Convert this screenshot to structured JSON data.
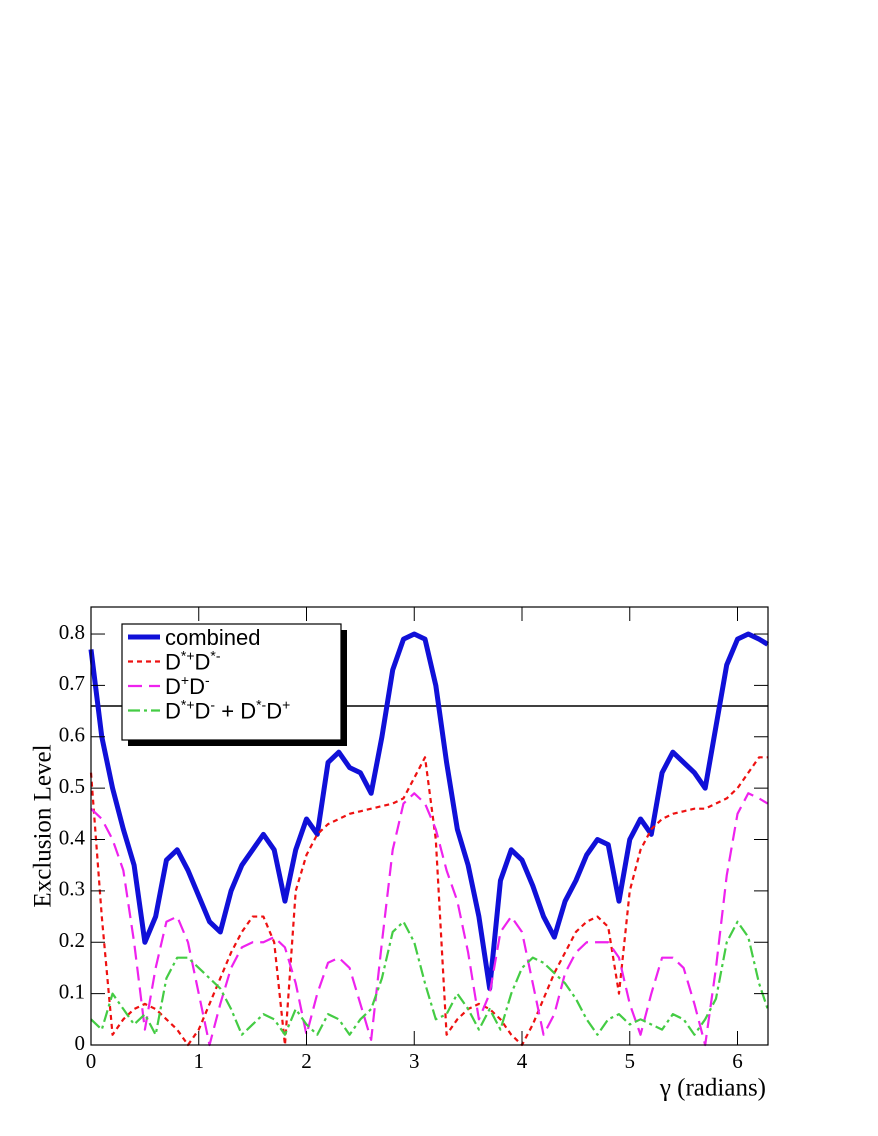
{
  "chart_data": {
    "type": "line",
    "ylabel": "Exclusion Level",
    "xlabel": "γ  (radians)",
    "x": [
      0,
      0.1,
      0.2,
      0.3,
      0.4,
      0.5,
      0.6,
      0.7,
      0.8,
      0.9,
      1.0,
      1.1,
      1.2,
      1.3,
      1.4,
      1.5,
      1.6,
      1.7,
      1.8,
      1.9,
      2.0,
      2.1,
      2.2,
      2.3,
      2.4,
      2.5,
      2.6,
      2.7,
      2.8,
      2.9,
      3.0,
      3.1,
      3.2,
      3.3,
      3.4,
      3.5,
      3.6,
      3.7,
      3.8,
      3.9,
      4.0,
      4.1,
      4.2,
      4.3,
      4.4,
      4.5,
      4.6,
      4.7,
      4.8,
      4.9,
      5.0,
      5.1,
      5.2,
      5.3,
      5.4,
      5.5,
      5.6,
      5.7,
      5.8,
      5.9,
      6.0,
      6.1,
      6.2,
      6.28
    ],
    "series": [
      {
        "name": "combined",
        "color": "#1010d8",
        "dash": "solid",
        "width": 5,
        "values": [
          0.77,
          0.6,
          0.5,
          0.42,
          0.35,
          0.2,
          0.25,
          0.36,
          0.38,
          0.34,
          0.29,
          0.24,
          0.22,
          0.3,
          0.35,
          0.38,
          0.41,
          0.38,
          0.28,
          0.38,
          0.44,
          0.41,
          0.55,
          0.57,
          0.54,
          0.53,
          0.49,
          0.6,
          0.73,
          0.79,
          0.8,
          0.79,
          0.7,
          0.55,
          0.42,
          0.35,
          0.25,
          0.11,
          0.32,
          0.38,
          0.36,
          0.31,
          0.25,
          0.21,
          0.28,
          0.32,
          0.37,
          0.4,
          0.39,
          0.28,
          0.4,
          0.44,
          0.41,
          0.53,
          0.57,
          0.55,
          0.53,
          0.5,
          0.62,
          0.74,
          0.79,
          0.8,
          0.79,
          0.78
        ]
      },
      {
        "name": "D*+D*-",
        "color": "#ee1111",
        "dash": "5,4",
        "width": 2.2,
        "values": [
          0.53,
          0.25,
          0.02,
          0.05,
          0.07,
          0.08,
          0.07,
          0.05,
          0.03,
          0.0,
          0.03,
          0.08,
          0.13,
          0.18,
          0.22,
          0.25,
          0.25,
          0.2,
          0.0,
          0.3,
          0.37,
          0.41,
          0.43,
          0.44,
          0.45,
          0.455,
          0.46,
          0.465,
          0.47,
          0.48,
          0.52,
          0.56,
          0.4,
          0.02,
          0.05,
          0.07,
          0.08,
          0.07,
          0.05,
          0.02,
          0.0,
          0.04,
          0.09,
          0.14,
          0.18,
          0.22,
          0.24,
          0.25,
          0.23,
          0.1,
          0.3,
          0.38,
          0.42,
          0.44,
          0.45,
          0.455,
          0.46,
          0.46,
          0.47,
          0.48,
          0.5,
          0.53,
          0.56,
          0.56
        ]
      },
      {
        "name": "D+D-",
        "color": "#ee22ee",
        "dash": "14,7",
        "width": 2.2,
        "values": [
          0.46,
          0.44,
          0.4,
          0.34,
          0.2,
          0.03,
          0.15,
          0.24,
          0.25,
          0.2,
          0.1,
          0.0,
          0.08,
          0.15,
          0.19,
          0.2,
          0.2,
          0.21,
          0.19,
          0.12,
          0.02,
          0.1,
          0.16,
          0.17,
          0.15,
          0.08,
          0.01,
          0.2,
          0.38,
          0.47,
          0.49,
          0.47,
          0.42,
          0.34,
          0.28,
          0.18,
          0.05,
          0.1,
          0.22,
          0.25,
          0.22,
          0.12,
          0.02,
          0.06,
          0.14,
          0.18,
          0.2,
          0.2,
          0.2,
          0.17,
          0.08,
          0.02,
          0.1,
          0.17,
          0.17,
          0.15,
          0.08,
          0.0,
          0.15,
          0.33,
          0.45,
          0.49,
          0.48,
          0.47
        ]
      },
      {
        "name": "D*+D- + D*-D+",
        "color": "#44cc44",
        "dash": "12,4,3,4",
        "width": 2.2,
        "values": [
          0.05,
          0.03,
          0.1,
          0.07,
          0.04,
          0.06,
          0.02,
          0.13,
          0.17,
          0.17,
          0.15,
          0.13,
          0.11,
          0.07,
          0.02,
          0.04,
          0.06,
          0.05,
          0.02,
          0.07,
          0.04,
          0.02,
          0.06,
          0.05,
          0.02,
          0.05,
          0.07,
          0.13,
          0.22,
          0.24,
          0.2,
          0.12,
          0.05,
          0.06,
          0.1,
          0.07,
          0.03,
          0.07,
          0.03,
          0.1,
          0.15,
          0.17,
          0.16,
          0.14,
          0.12,
          0.09,
          0.05,
          0.02,
          0.05,
          0.06,
          0.04,
          0.05,
          0.04,
          0.03,
          0.06,
          0.05,
          0.02,
          0.05,
          0.09,
          0.2,
          0.24,
          0.21,
          0.12,
          0.07
        ]
      }
    ],
    "reference_line": 0.66,
    "xlim": [
      0,
      6.283
    ],
    "ylim": [
      0,
      0.8526
    ],
    "xticks": [
      0,
      1,
      2,
      3,
      4,
      5,
      6
    ],
    "yticks": [
      0,
      0.1,
      0.2,
      0.3,
      0.4,
      0.5,
      0.6,
      0.7,
      0.8
    ],
    "legend": "upper left"
  }
}
